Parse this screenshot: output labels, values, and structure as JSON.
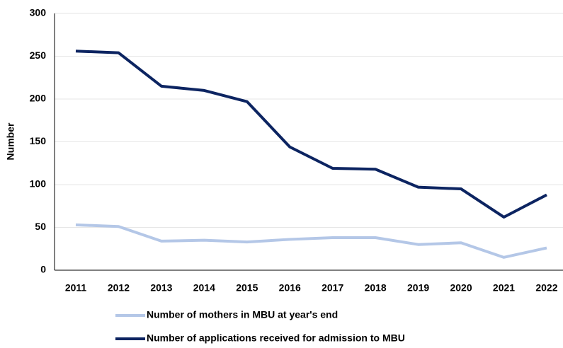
{
  "chart_data": {
    "type": "line",
    "y_label": "Number",
    "categories": [
      "2011",
      "2012",
      "2013",
      "2014",
      "2015",
      "2016",
      "2017",
      "2018",
      "2019",
      "2020",
      "2021",
      "2022"
    ],
    "series": [
      {
        "name": "Number of mothers in MBU at year's end",
        "color": "#b4c7e7",
        "values": [
          53,
          51,
          34,
          35,
          33,
          36,
          38,
          38,
          30,
          32,
          15,
          26
        ]
      },
      {
        "name": "Number of applications received for admission to MBU",
        "color": "#0c2461",
        "values": [
          256,
          254,
          215,
          210,
          197,
          144,
          119,
          118,
          97,
          95,
          62,
          88
        ]
      }
    ],
    "ylim": [
      0,
      300
    ],
    "yticks": [
      0,
      50,
      100,
      150,
      200,
      250,
      300
    ],
    "grid": true
  }
}
